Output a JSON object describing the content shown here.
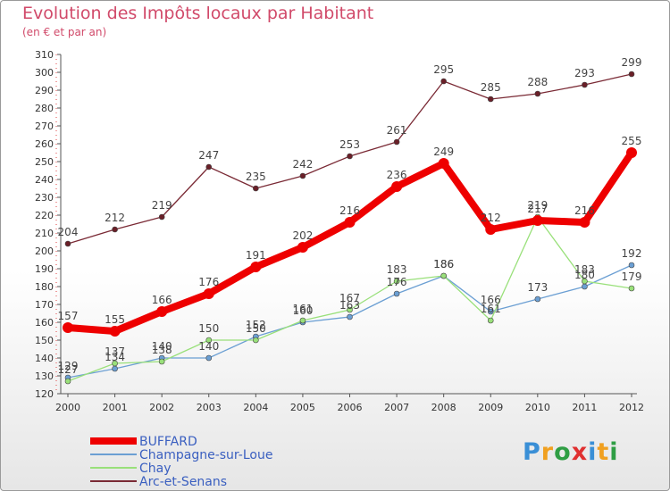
{
  "header": {
    "title": "Evolution des Impôts locaux par Habitant",
    "subtitle": "(en € et par an)"
  },
  "chart_data": {
    "type": "line",
    "title": "Evolution des Impôts locaux par Habitant",
    "subtitle": "(en € et par an)",
    "xlabel": "",
    "ylabel": "",
    "ylim": [
      120,
      310
    ],
    "ytick_step": 10,
    "grid": false,
    "legend_position": "bottom",
    "x": [
      "2000",
      "2001",
      "2002",
      "2003",
      "2004",
      "2005",
      "2006",
      "2007",
      "2008",
      "2009",
      "2010",
      "2011",
      "2012"
    ],
    "series": [
      {
        "name": "BUFFARD",
        "color": "#ee0000",
        "thick": true,
        "values": [
          157,
          155,
          166,
          176,
          191,
          202,
          216,
          236,
          249,
          212,
          217,
          216,
          255
        ]
      },
      {
        "name": "Champagne-sur-Loue",
        "color": "#6b9fd3",
        "thick": false,
        "values": [
          129,
          134,
          140,
          140,
          152,
          160,
          163,
          176,
          186,
          166,
          173,
          180,
          192
        ]
      },
      {
        "name": "Chay",
        "color": "#99e07a",
        "thick": false,
        "values": [
          127,
          137,
          138,
          150,
          150,
          161,
          167,
          183,
          186,
          161,
          219,
          183,
          179
        ]
      },
      {
        "name": "Arc-et-Senans",
        "color": "#7a2a35",
        "thick": false,
        "values": [
          204,
          212,
          219,
          247,
          235,
          242,
          253,
          261,
          295,
          285,
          288,
          293,
          299
        ]
      }
    ]
  },
  "logo": {
    "letters": [
      "P",
      "r",
      "o",
      "x",
      "i",
      "t",
      "i"
    ],
    "colors": [
      "#3a8fd6",
      "#f0a020",
      "#2f9e44",
      "#e03030",
      "#3a8fd6",
      "#f0a020",
      "#2f9e44"
    ]
  }
}
